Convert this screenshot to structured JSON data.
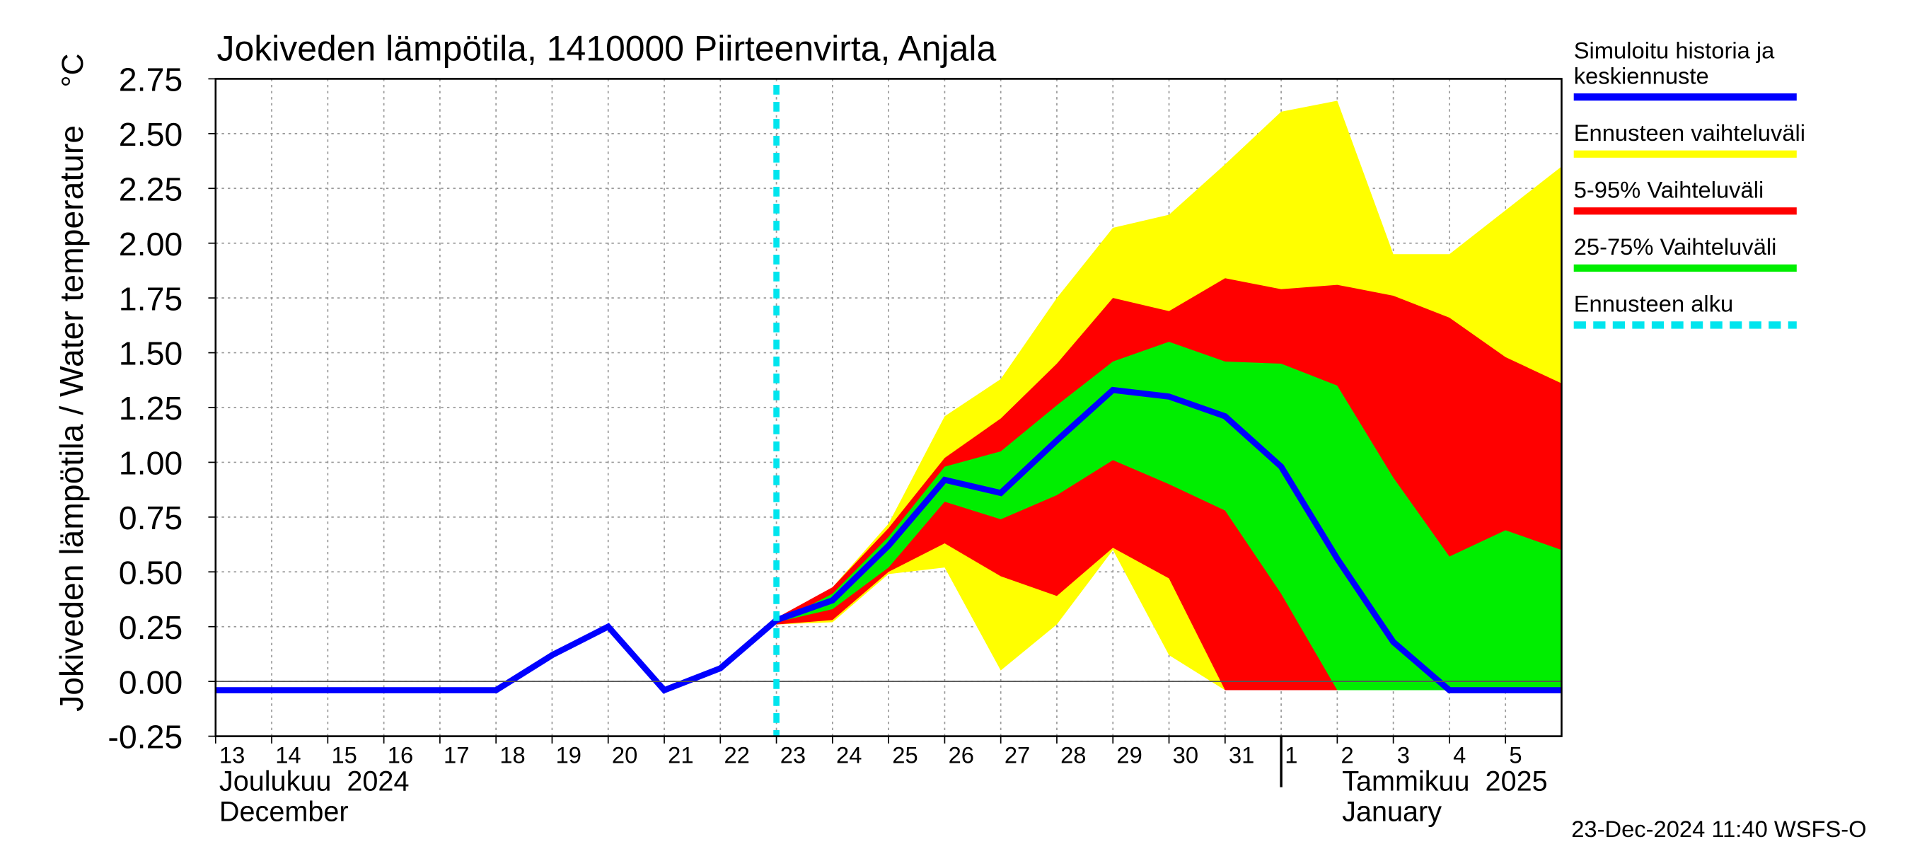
{
  "chart_data": {
    "type": "line",
    "title": "Jokiveden lämpötila, 1410000 Piirteenvirta, Anjala",
    "y_label": "Jokiveden lämpötila / Water temperature",
    "y_unit": "°C",
    "footer": "23-Dec-2024 11:40 WSFS-O",
    "xlim": [
      "2024-12-13",
      "2025-01-06"
    ],
    "ylim": [
      -0.25,
      2.75
    ],
    "yticks": [
      {
        "value": -0.25,
        "label": "-0.25"
      },
      {
        "value": 0,
        "label": "0.00"
      },
      0.25,
      {
        "value": 0.5,
        "label": "0.50"
      },
      0.75,
      {
        "value": 1,
        "label": "1.00"
      },
      1.25,
      {
        "value": 1.5,
        "label": "1.50"
      },
      1.75,
      {
        "value": 2,
        "label": "2.00"
      },
      2.25,
      {
        "value": 2.5,
        "label": "2.50"
      },
      2.75
    ],
    "xticks": [
      {
        "value": "2024-12-13",
        "label": "13"
      },
      {
        "value": "2024-12-14",
        "label": "14"
      },
      {
        "value": "2024-12-15",
        "label": "15"
      },
      {
        "value": "2024-12-16",
        "label": "16"
      },
      {
        "value": "2024-12-17",
        "label": "17"
      },
      {
        "value": "2024-12-18",
        "label": "18"
      },
      {
        "value": "2024-12-19",
        "label": "19"
      },
      {
        "value": "2024-12-20",
        "label": "20"
      },
      {
        "value": "2024-12-21",
        "label": "21"
      },
      {
        "value": "2024-12-22",
        "label": "22"
      },
      {
        "value": "2024-12-23",
        "label": "23"
      },
      {
        "value": "2024-12-24",
        "label": "24"
      },
      {
        "value": "2024-12-25",
        "label": "25"
      },
      {
        "value": "2024-12-26",
        "label": "26"
      },
      {
        "value": "2024-12-27",
        "label": "27"
      },
      {
        "value": "2024-12-28",
        "label": "28"
      },
      {
        "value": "2024-12-29",
        "label": "29"
      },
      {
        "value": "2024-12-30",
        "label": "30"
      },
      {
        "value": "2024-12-31",
        "label": "31"
      },
      {
        "value": "2025-01-01",
        "label": "1"
      },
      {
        "value": "2025-01-02",
        "label": "2"
      },
      {
        "value": "2025-01-03",
        "label": "3"
      },
      {
        "value": "2025-01-04",
        "label": "4"
      },
      {
        "value": "2025-01-05",
        "label": "5"
      }
    ],
    "months": [
      {
        "x": "2024-12-13",
        "label": "Joulukuu  2024",
        "label_en": "December"
      },
      {
        "x": "2025-01-01",
        "label": "Tammikuu  2025",
        "label_en": "January"
      }
    ],
    "grid": true,
    "series": [
      {
        "name": "Ennusteen vaihteluväli",
        "kind": "band",
        "color": "#ffff00",
        "x": [
          "2024-12-23",
          "2024-12-24",
          "2024-12-25",
          "2024-12-26",
          "2024-12-27",
          "2024-12-28",
          "2024-12-29",
          "2024-12-30",
          "2024-12-31",
          "2025-01-01",
          "2025-01-02",
          "2025-01-03",
          "2025-01-04",
          "2025-01-05",
          "2025-01-06"
        ],
        "upper": [
          0.28,
          0.43,
          0.72,
          1.21,
          1.38,
          1.75,
          2.07,
          2.13,
          2.36,
          2.6,
          2.65,
          1.95,
          1.95,
          2.15,
          2.35
        ],
        "lower": [
          0.26,
          0.27,
          0.49,
          0.52,
          0.05,
          0.26,
          0.6,
          0.12,
          -0.04,
          -0.04,
          -0.04,
          -0.04,
          -0.04,
          -0.04,
          -0.04
        ]
      },
      {
        "name": "5-95% Vaihteluväli",
        "kind": "band",
        "color": "#ff0000",
        "x": [
          "2024-12-23",
          "2024-12-24",
          "2024-12-25",
          "2024-12-26",
          "2024-12-27",
          "2024-12-28",
          "2024-12-29",
          "2024-12-30",
          "2024-12-31",
          "2025-01-01",
          "2025-01-02",
          "2025-01-03",
          "2025-01-04",
          "2025-01-05",
          "2025-01-06"
        ],
        "upper": [
          0.29,
          0.43,
          0.7,
          1.02,
          1.2,
          1.45,
          1.75,
          1.69,
          1.84,
          1.79,
          1.81,
          1.76,
          1.66,
          1.48,
          1.36
        ],
        "lower": [
          0.26,
          0.28,
          0.5,
          0.63,
          0.48,
          0.39,
          0.61,
          0.47,
          -0.04,
          -0.04,
          -0.04,
          -0.04,
          -0.04,
          -0.04,
          -0.04
        ]
      },
      {
        "name": "25-75% Vaihteluväli",
        "kind": "band",
        "color": "#00ee00",
        "x": [
          "2024-12-23",
          "2024-12-24",
          "2024-12-25",
          "2024-12-26",
          "2024-12-27",
          "2024-12-28",
          "2024-12-29",
          "2024-12-30",
          "2024-12-31",
          "2025-01-01",
          "2025-01-02",
          "2025-01-03",
          "2025-01-04",
          "2025-01-05",
          "2025-01-06"
        ],
        "upper": [
          0.27,
          0.4,
          0.66,
          0.98,
          1.05,
          1.26,
          1.46,
          1.55,
          1.46,
          1.45,
          1.35,
          0.93,
          0.57,
          0.69,
          0.6
        ],
        "lower": [
          0.27,
          0.33,
          0.52,
          0.82,
          0.74,
          0.85,
          1.01,
          0.9,
          0.78,
          0.4,
          -0.04,
          -0.04,
          -0.04,
          -0.04,
          -0.04
        ]
      },
      {
        "name": "Simuloitu historia ja keskiennuste",
        "kind": "line",
        "color": "#0000ff",
        "x": [
          "2024-12-13",
          "2024-12-14",
          "2024-12-15",
          "2024-12-16",
          "2024-12-17",
          "2024-12-18",
          "2024-12-19",
          "2024-12-20",
          "2024-12-21",
          "2024-12-22",
          "2024-12-23",
          "2024-12-24",
          "2024-12-25",
          "2024-12-26",
          "2024-12-27",
          "2024-12-28",
          "2024-12-29",
          "2024-12-30",
          "2024-12-31",
          "2025-01-01",
          "2025-01-02",
          "2025-01-03",
          "2025-01-04",
          "2025-01-05",
          "2025-01-06"
        ],
        "values": [
          -0.04,
          -0.04,
          -0.04,
          -0.04,
          -0.04,
          -0.04,
          0.12,
          0.25,
          -0.04,
          0.06,
          0.28,
          0.37,
          0.62,
          0.92,
          0.86,
          1.1,
          1.33,
          1.3,
          1.21,
          0.98,
          0.56,
          0.18,
          -0.04,
          -0.04,
          -0.04
        ]
      }
    ],
    "forecast_start": {
      "name": "Ennusteen alku",
      "x": "2024-12-23",
      "color": "#00e5ee"
    },
    "legend_order": [
      3,
      0,
      1,
      2
    ]
  }
}
